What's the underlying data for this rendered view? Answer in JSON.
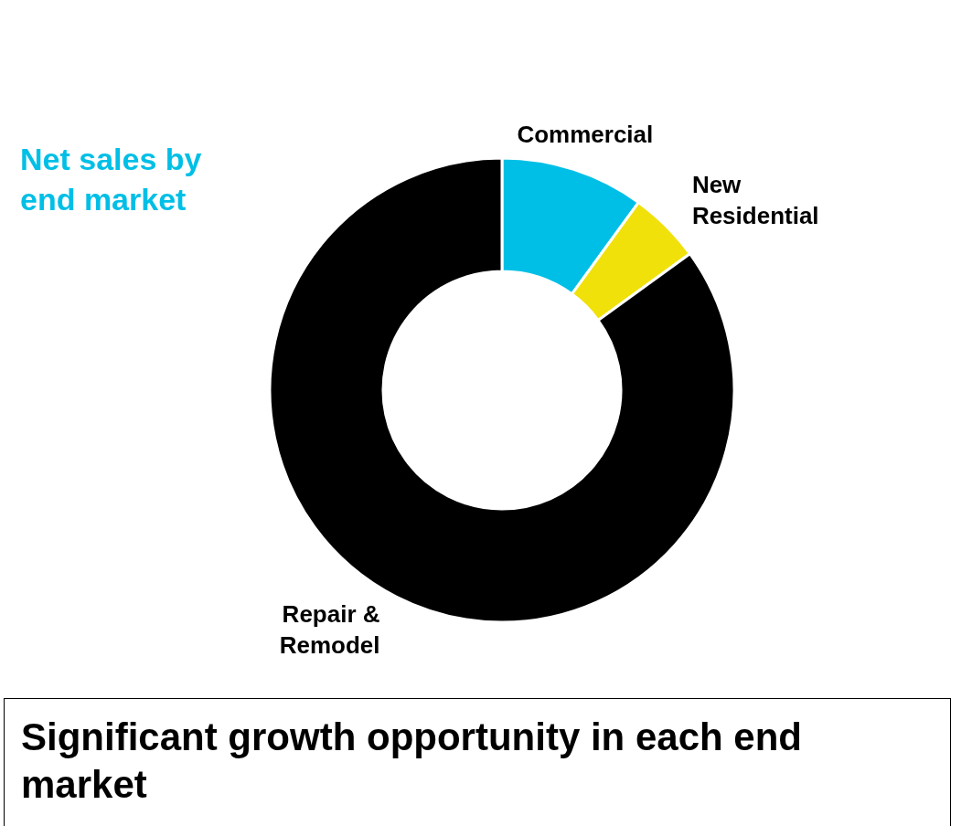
{
  "chart_data": {
    "type": "donut",
    "title": "Net sales by end market",
    "categories": [
      "Commercial",
      "New Residential",
      "Repair & Remodel"
    ],
    "values": [
      10,
      5,
      85
    ],
    "colors": [
      "#00bfe6",
      "#f0e10a",
      "#000000"
    ],
    "annotations": [
      "Significant growth opportunity in each end market"
    ]
  }
}
